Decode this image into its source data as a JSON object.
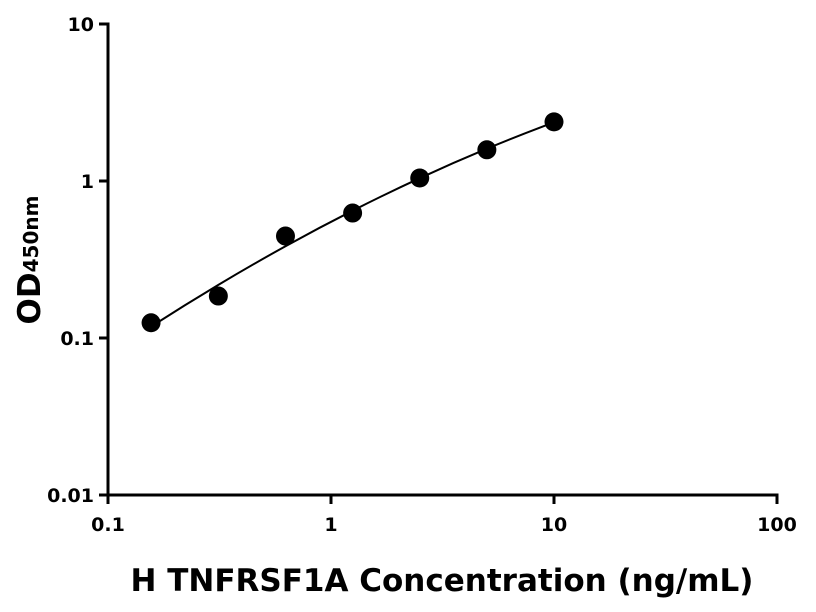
{
  "chart_data": {
    "type": "scatter",
    "x_label": "H TNFRSF1A Concentration (ng/mL)",
    "y_label": "OD",
    "y_label_subscript": "450nm",
    "x": [
      0.156,
      0.3125,
      0.625,
      1.25,
      2.5,
      5,
      10
    ],
    "values": [
      0.125,
      0.185,
      0.446,
      0.625,
      1.045,
      1.58,
      2.38
    ],
    "color": "#000000",
    "xscale": "log",
    "yscale": "log",
    "xlim": [
      0.1,
      100
    ],
    "xticks": [
      0.1,
      1,
      10,
      100
    ],
    "ylim": [
      0.01,
      10
    ],
    "yticks": [
      0.01,
      0.1,
      1,
      10
    ],
    "fit_curve": true
  }
}
